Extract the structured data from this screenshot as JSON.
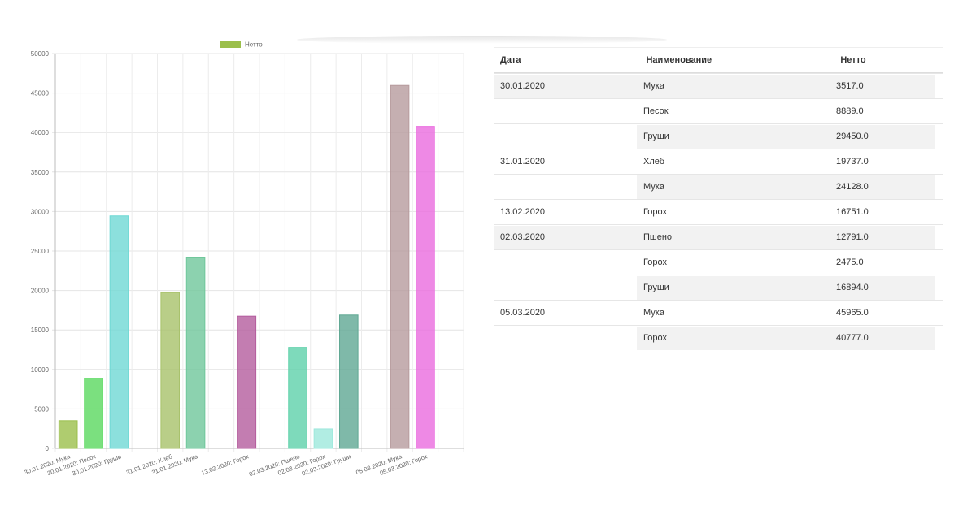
{
  "chart_data": {
    "type": "bar",
    "legend": {
      "label": "Нетто",
      "color": "#9bbf4b",
      "placement": "top-center"
    },
    "categories": [
      "30.01.2020: Мука",
      "30.01.2020: Песок",
      "30.01.2020: Груши",
      "31.01.2020: Хлеб",
      "31.01.2020: Мука",
      "13.02.2020: Горох",
      "02.03.2020: Пшено",
      "02.03.2020: Горох",
      "02.03.2020: Груши",
      "05.03.2020: Мука",
      "05.03.2020: Горох"
    ],
    "slots": [
      0,
      1,
      2,
      4,
      5,
      7,
      9,
      10,
      11,
      13,
      14
    ],
    "values": [
      3517,
      8889,
      29450,
      19737,
      24128,
      16751,
      12791,
      2475,
      16894,
      45965,
      40777
    ],
    "colors": [
      "#9bbf4b",
      "#5ad85f",
      "#6fd8d4",
      "#a8c26a",
      "#6fc79b",
      "#b45c9d",
      "#5ed1aa",
      "#9ee8dc",
      "#5fa893",
      "#b79b9d",
      "#ea6cdf"
    ],
    "ylim": [
      0,
      50000
    ],
    "yticks": [
      0,
      5000,
      10000,
      15000,
      20000,
      25000,
      30000,
      35000,
      40000,
      45000,
      50000
    ],
    "grid": true
  },
  "table": {
    "headers": [
      "Дата",
      "Наименование",
      "Нетто"
    ],
    "rows": [
      [
        "30.01.2020",
        "Мука",
        "3517.0"
      ],
      [
        "",
        "Песок",
        "8889.0"
      ],
      [
        "",
        "Груши",
        "29450.0"
      ],
      [
        "31.01.2020",
        "Хлеб",
        "19737.0"
      ],
      [
        "",
        "Мука",
        "24128.0"
      ],
      [
        "13.02.2020",
        "Горох",
        "16751.0"
      ],
      [
        "02.03.2020",
        "Пшено",
        "12791.0"
      ],
      [
        "",
        "Горох",
        "2475.0"
      ],
      [
        "",
        "Груши",
        "16894.0"
      ],
      [
        "05.03.2020",
        "Мука",
        "45965.0"
      ],
      [
        "",
        "Горох",
        "40777.0"
      ]
    ]
  }
}
